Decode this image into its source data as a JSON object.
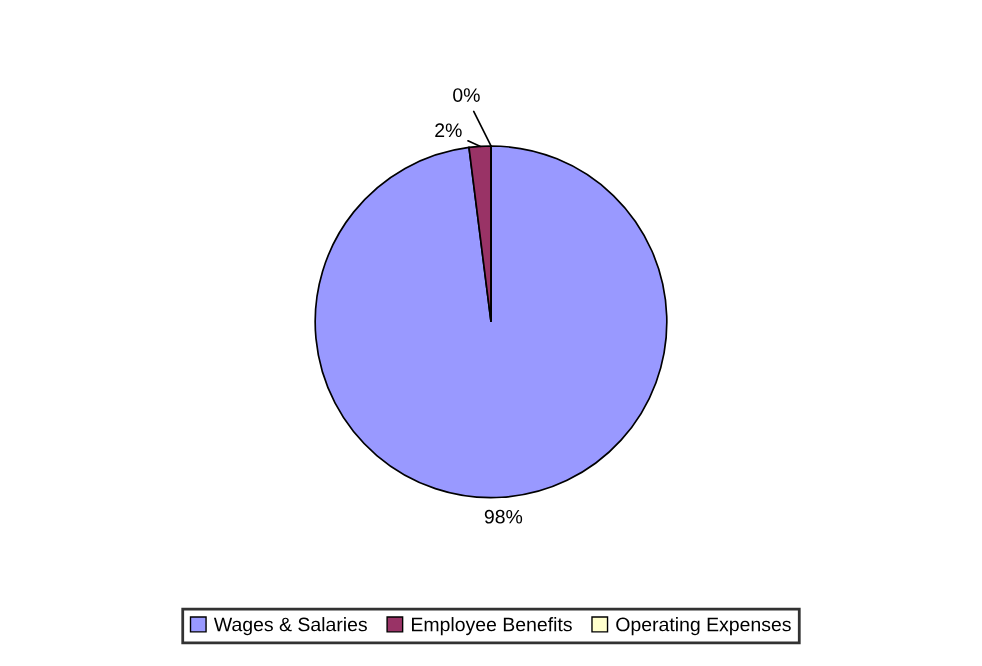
{
  "chart_data": {
    "type": "pie",
    "categories": [
      "Wages & Salaries",
      "Employee Benefits",
      "Operating Expenses"
    ],
    "values": [
      98,
      2,
      0
    ],
    "colors": [
      "#9999ff",
      "#993366",
      "#ffffcc"
    ],
    "value_labels": [
      "98%",
      "2%",
      "0%"
    ],
    "legend": "bottom"
  }
}
